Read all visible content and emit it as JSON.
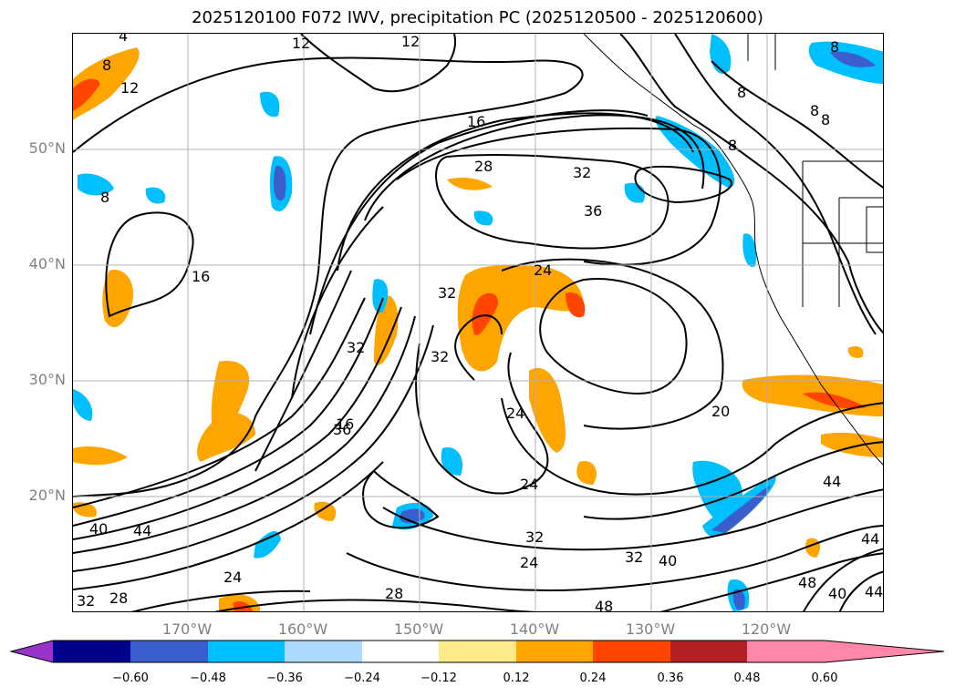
{
  "title": "2025120100 F072 IWV, precipitation PC (2025120500 - 2025120600)",
  "lat_labels": [
    "50°N",
    "40°N",
    "30°N",
    "20°N"
  ],
  "lon_labels": [
    "170°W",
    "160°W",
    "150°W",
    "140°W",
    "130°W",
    "120°W"
  ],
  "colorbar": {
    "ticks": [
      "−0.60",
      "−0.48",
      "−0.36",
      "−0.24",
      "−0.12",
      "0.12",
      "0.24",
      "0.36",
      "0.48",
      "0.60"
    ],
    "colors": [
      "#9933cc",
      "#00008b",
      "#3a5fcd",
      "#00bfff",
      "#add8ff",
      "#ffffff",
      "#ffea8a",
      "#ffa500",
      "#ff4500",
      "#b22222",
      "#ff88aa"
    ]
  },
  "contour_labels": [
    "4",
    "8",
    "12",
    "12",
    "12",
    "8",
    "16",
    "28",
    "32",
    "36",
    "16",
    "8",
    "24",
    "32",
    "32",
    "32",
    "24",
    "20",
    "36",
    "24",
    "32",
    "24",
    "32",
    "40",
    "44",
    "40",
    "44",
    "24",
    "28",
    "32",
    "28",
    "48",
    "48",
    "40",
    "44",
    "44",
    "8",
    "8",
    "8",
    "8",
    "16"
  ]
}
